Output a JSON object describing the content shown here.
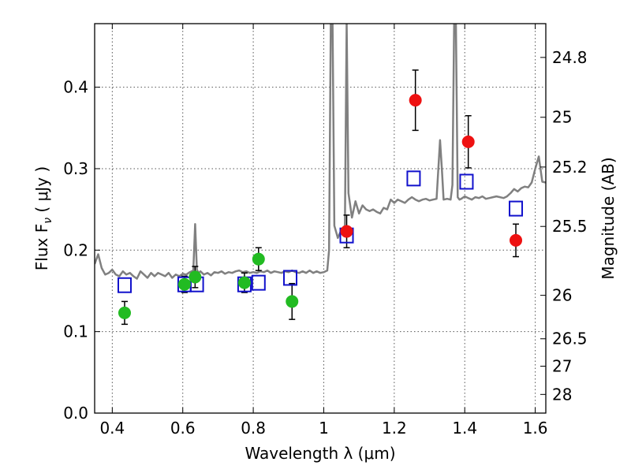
{
  "chart_data": {
    "type": "scatter",
    "xlabel": "Wavelength  λ (μm)",
    "ylabel": "Flux  F",
    "ylabel_sub": "ν",
    "ylabel_unit": " ( μJy )",
    "ylabel_right": "Magnitude (AB)",
    "xlim": [
      0.35,
      1.63
    ],
    "ylim": [
      0.0,
      0.478
    ],
    "grid": true,
    "x_ticks": [
      {
        "value": 0.4,
        "label": "0.4"
      },
      {
        "value": 0.6,
        "label": "0.6"
      },
      {
        "value": 0.8,
        "label": "0.8"
      },
      {
        "value": 1.0,
        "label": "1"
      },
      {
        "value": 1.2,
        "label": "1.2"
      },
      {
        "value": 1.4,
        "label": "1.4"
      },
      {
        "value": 1.6,
        "label": "1.6"
      }
    ],
    "y_ticks": [
      {
        "value": 0.0,
        "label": "0.0"
      },
      {
        "value": 0.1,
        "label": "0.1"
      },
      {
        "value": 0.2,
        "label": "0.2"
      },
      {
        "value": 0.3,
        "label": "0.3"
      },
      {
        "value": 0.4,
        "label": "0.4"
      }
    ],
    "y_right_ticks": [
      {
        "value": 28,
        "label": "28"
      },
      {
        "value": 27,
        "label": "27"
      },
      {
        "value": 26.5,
        "label": "26.5"
      },
      {
        "value": 26,
        "label": "26"
      },
      {
        "value": 25.5,
        "label": "25.5"
      },
      {
        "value": 25.2,
        "label": "25.2"
      },
      {
        "value": 25,
        "label": "25"
      },
      {
        "value": 24.8,
        "label": "24.8"
      }
    ],
    "colors": {
      "spectrum": "#808080",
      "green": "#22bb22",
      "red": "#ee1111",
      "model_box": "#1111cc",
      "errorbar": "#000000",
      "grid": "#555555"
    },
    "series": [
      {
        "kind": "line",
        "x": [
          0.35,
          0.36,
          0.37,
          0.38,
          0.39,
          0.4,
          0.41,
          0.42,
          0.43,
          0.44,
          0.45,
          0.46,
          0.47,
          0.48,
          0.49,
          0.5,
          0.51,
          0.52,
          0.53,
          0.54,
          0.55,
          0.56,
          0.57,
          0.58,
          0.59,
          0.6,
          0.61,
          0.62,
          0.63,
          0.635,
          0.64,
          0.645,
          0.65,
          0.66,
          0.67,
          0.68,
          0.69,
          0.7,
          0.71,
          0.72,
          0.73,
          0.74,
          0.75,
          0.76,
          0.77,
          0.78,
          0.79,
          0.8,
          0.81,
          0.82,
          0.83,
          0.84,
          0.85,
          0.86,
          0.87,
          0.88,
          0.89,
          0.9,
          0.91,
          0.92,
          0.93,
          0.94,
          0.95,
          0.96,
          0.97,
          0.98,
          0.99,
          1.0,
          1.01,
          1.015,
          1.02,
          1.025,
          1.03,
          1.04,
          1.05,
          1.06,
          1.065,
          1.07,
          1.08,
          1.09,
          1.1,
          1.11,
          1.12,
          1.13,
          1.14,
          1.15,
          1.16,
          1.17,
          1.18,
          1.19,
          1.2,
          1.21,
          1.22,
          1.23,
          1.24,
          1.25,
          1.26,
          1.27,
          1.28,
          1.29,
          1.3,
          1.31,
          1.32,
          1.33,
          1.335,
          1.34,
          1.35,
          1.36,
          1.365,
          1.37,
          1.375,
          1.38,
          1.385,
          1.39,
          1.4,
          1.41,
          1.42,
          1.43,
          1.44,
          1.45,
          1.46,
          1.47,
          1.48,
          1.49,
          1.5,
          1.51,
          1.52,
          1.53,
          1.54,
          1.55,
          1.56,
          1.57,
          1.58,
          1.59,
          1.6,
          1.61,
          1.62,
          1.63
        ],
        "y": [
          0.183,
          0.195,
          0.178,
          0.17,
          0.172,
          0.176,
          0.17,
          0.168,
          0.174,
          0.17,
          0.172,
          0.168,
          0.165,
          0.174,
          0.17,
          0.166,
          0.172,
          0.168,
          0.172,
          0.17,
          0.168,
          0.172,
          0.166,
          0.17,
          0.168,
          0.171,
          0.17,
          0.173,
          0.175,
          0.232,
          0.176,
          0.172,
          0.174,
          0.17,
          0.172,
          0.169,
          0.173,
          0.172,
          0.174,
          0.171,
          0.173,
          0.172,
          0.174,
          0.175,
          0.173,
          0.174,
          0.172,
          0.173,
          0.172,
          0.174,
          0.173,
          0.175,
          0.172,
          0.174,
          0.173,
          0.172,
          0.174,
          0.173,
          0.175,
          0.173,
          0.172,
          0.174,
          0.172,
          0.175,
          0.172,
          0.174,
          0.172,
          0.173,
          0.175,
          0.2,
          0.48,
          0.48,
          0.23,
          0.215,
          0.225,
          0.23,
          0.48,
          0.27,
          0.24,
          0.26,
          0.245,
          0.255,
          0.25,
          0.248,
          0.25,
          0.247,
          0.245,
          0.252,
          0.25,
          0.262,
          0.258,
          0.262,
          0.26,
          0.258,
          0.262,
          0.265,
          0.262,
          0.26,
          0.262,
          0.263,
          0.261,
          0.262,
          0.263,
          0.335,
          0.3,
          0.262,
          0.263,
          0.262,
          0.28,
          0.48,
          0.48,
          0.265,
          0.262,
          0.263,
          0.266,
          0.264,
          0.262,
          0.265,
          0.264,
          0.266,
          0.263,
          0.264,
          0.265,
          0.266,
          0.265,
          0.264,
          0.266,
          0.27,
          0.275,
          0.272,
          0.276,
          0.278,
          0.277,
          0.283,
          0.3,
          0.315,
          0.284,
          0.283
        ]
      },
      {
        "kind": "errorbar-points",
        "color_key": "green",
        "points": [
          {
            "x": 0.435,
            "y": 0.123,
            "err": 0.014
          },
          {
            "x": 0.605,
            "y": 0.158,
            "err": 0.01
          },
          {
            "x": 0.635,
            "y": 0.167,
            "err": 0.013
          },
          {
            "x": 0.775,
            "y": 0.16,
            "err": 0.012
          },
          {
            "x": 0.815,
            "y": 0.189,
            "err": 0.014
          },
          {
            "x": 0.91,
            "y": 0.137,
            "err": 0.022
          }
        ]
      },
      {
        "kind": "errorbar-points",
        "color_key": "red",
        "points": [
          {
            "x": 1.065,
            "y": 0.223,
            "err": 0.02
          },
          {
            "x": 1.26,
            "y": 0.384,
            "err": 0.037
          },
          {
            "x": 1.41,
            "y": 0.333,
            "err": 0.032
          },
          {
            "x": 1.545,
            "y": 0.212,
            "err": 0.02
          }
        ]
      },
      {
        "kind": "open-squares",
        "color_key": "model_box",
        "points": [
          {
            "x": 0.435,
            "y": 0.157
          },
          {
            "x": 0.605,
            "y": 0.158
          },
          {
            "x": 0.64,
            "y": 0.158
          },
          {
            "x": 0.775,
            "y": 0.158
          },
          {
            "x": 0.815,
            "y": 0.16
          },
          {
            "x": 0.905,
            "y": 0.166
          },
          {
            "x": 1.065,
            "y": 0.218
          },
          {
            "x": 1.255,
            "y": 0.288
          },
          {
            "x": 1.405,
            "y": 0.284
          },
          {
            "x": 1.545,
            "y": 0.251
          }
        ]
      }
    ]
  }
}
